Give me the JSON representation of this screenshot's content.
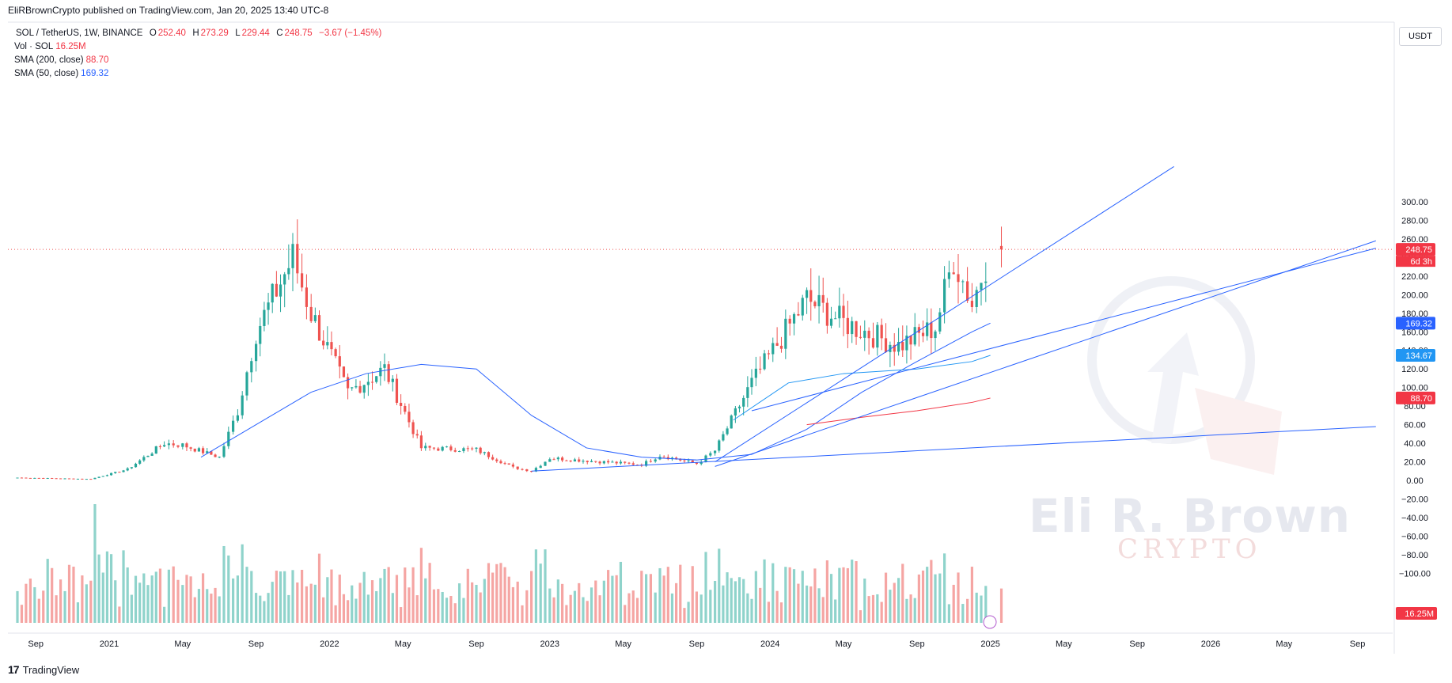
{
  "header": {
    "published_line": "EliRBrownCrypto published on TradingView.com, Jan 20, 2025 13:40 UTC-8"
  },
  "legend": {
    "symbol": "SOL / TetherUS, 1W, BINANCE",
    "open_label": "O",
    "open": "252.40",
    "high_label": "H",
    "high": "273.29",
    "low_label": "L",
    "low": "229.44",
    "close_label": "C",
    "close": "248.75",
    "change": "−3.67 (−1.45%)",
    "volume_label": "Vol · SOL",
    "volume_value": "16.25M",
    "sma200_label": "SMA (200, close)",
    "sma200_value": "88.70",
    "sma50_label": "SMA (50, close)",
    "sma50_value": "169.32"
  },
  "price_scale": {
    "currency": "USDT",
    "ticks": [
      "300.00",
      "280.00",
      "260.00",
      "240.00",
      "220.00",
      "200.00",
      "180.00",
      "160.00",
      "140.00",
      "120.00",
      "100.00",
      "80.00",
      "60.00",
      "40.00",
      "20.00",
      "0.00",
      "−20.00",
      "−40.00",
      "−60.00",
      "−80.00",
      "−100.00"
    ],
    "tags": {
      "last_price": "248.75",
      "countdown": "6d 3h",
      "sma50": "169.32",
      "trendline": "134.67",
      "sma200": "88.70",
      "volume": "16.25M"
    }
  },
  "time_scale": {
    "labels": [
      "Sep",
      "2021",
      "May",
      "Sep",
      "2022",
      "May",
      "Sep",
      "2023",
      "May",
      "Sep",
      "2024",
      "May",
      "Sep",
      "2025",
      "May",
      "Sep",
      "2026",
      "May",
      "Sep"
    ]
  },
  "watermark": {
    "name": "Eli R. Brown",
    "sub": "CRYPTO"
  },
  "footer": {
    "brand": "TradingView"
  },
  "colors": {
    "up": "#26a69a",
    "down": "#ef5350",
    "vol_up": "#8fd3cb",
    "vol_down": "#f5a5a3",
    "sma50": "#2962ff",
    "sma200": "#f23645",
    "trendline": "#2962ff",
    "tag_red": "#f23645",
    "tag_blue": "#2962ff",
    "tag_light_blue": "#2196f3"
  },
  "chart_data": {
    "type": "candlestick",
    "title": "SOL / TetherUS, 1W, BINANCE",
    "x_range": [
      "2020-08",
      "2026-10"
    ],
    "ylim": [
      -100,
      320
    ],
    "weekly_close_path": [
      {
        "date": "2020-08",
        "close": 3
      },
      {
        "date": "2020-12",
        "close": 1.5
      },
      {
        "date": "2021-02",
        "close": 12
      },
      {
        "date": "2021-04",
        "close": 40
      },
      {
        "date": "2021-05",
        "close": 38
      },
      {
        "date": "2021-07",
        "close": 25
      },
      {
        "date": "2021-08",
        "close": 75
      },
      {
        "date": "2021-09",
        "close": 160
      },
      {
        "date": "2021-11",
        "close": 240
      },
      {
        "date": "2021-12",
        "close": 180
      },
      {
        "date": "2022-02",
        "close": 95
      },
      {
        "date": "2022-04",
        "close": 120
      },
      {
        "date": "2022-06",
        "close": 35
      },
      {
        "date": "2022-09",
        "close": 33
      },
      {
        "date": "2022-11",
        "close": 14
      },
      {
        "date": "2022-12",
        "close": 10
      },
      {
        "date": "2023-01",
        "close": 24
      },
      {
        "date": "2023-06",
        "close": 17
      },
      {
        "date": "2023-07",
        "close": 27
      },
      {
        "date": "2023-09",
        "close": 18
      },
      {
        "date": "2023-10",
        "close": 32
      },
      {
        "date": "2023-12",
        "close": 105
      },
      {
        "date": "2024-03",
        "close": 195
      },
      {
        "date": "2024-05",
        "close": 170
      },
      {
        "date": "2024-08",
        "close": 145
      },
      {
        "date": "2024-10",
        "close": 165
      },
      {
        "date": "2024-11",
        "close": 240
      },
      {
        "date": "2024-12",
        "close": 190
      },
      {
        "date": "2025-01",
        "close": 248.75
      }
    ],
    "last_candle": {
      "open": 252.4,
      "high": 273.29,
      "low": 229.44,
      "close": 248.75
    },
    "sma50_last": 169.32,
    "sma200_last": 88.7,
    "volume_last": "16.25M"
  }
}
